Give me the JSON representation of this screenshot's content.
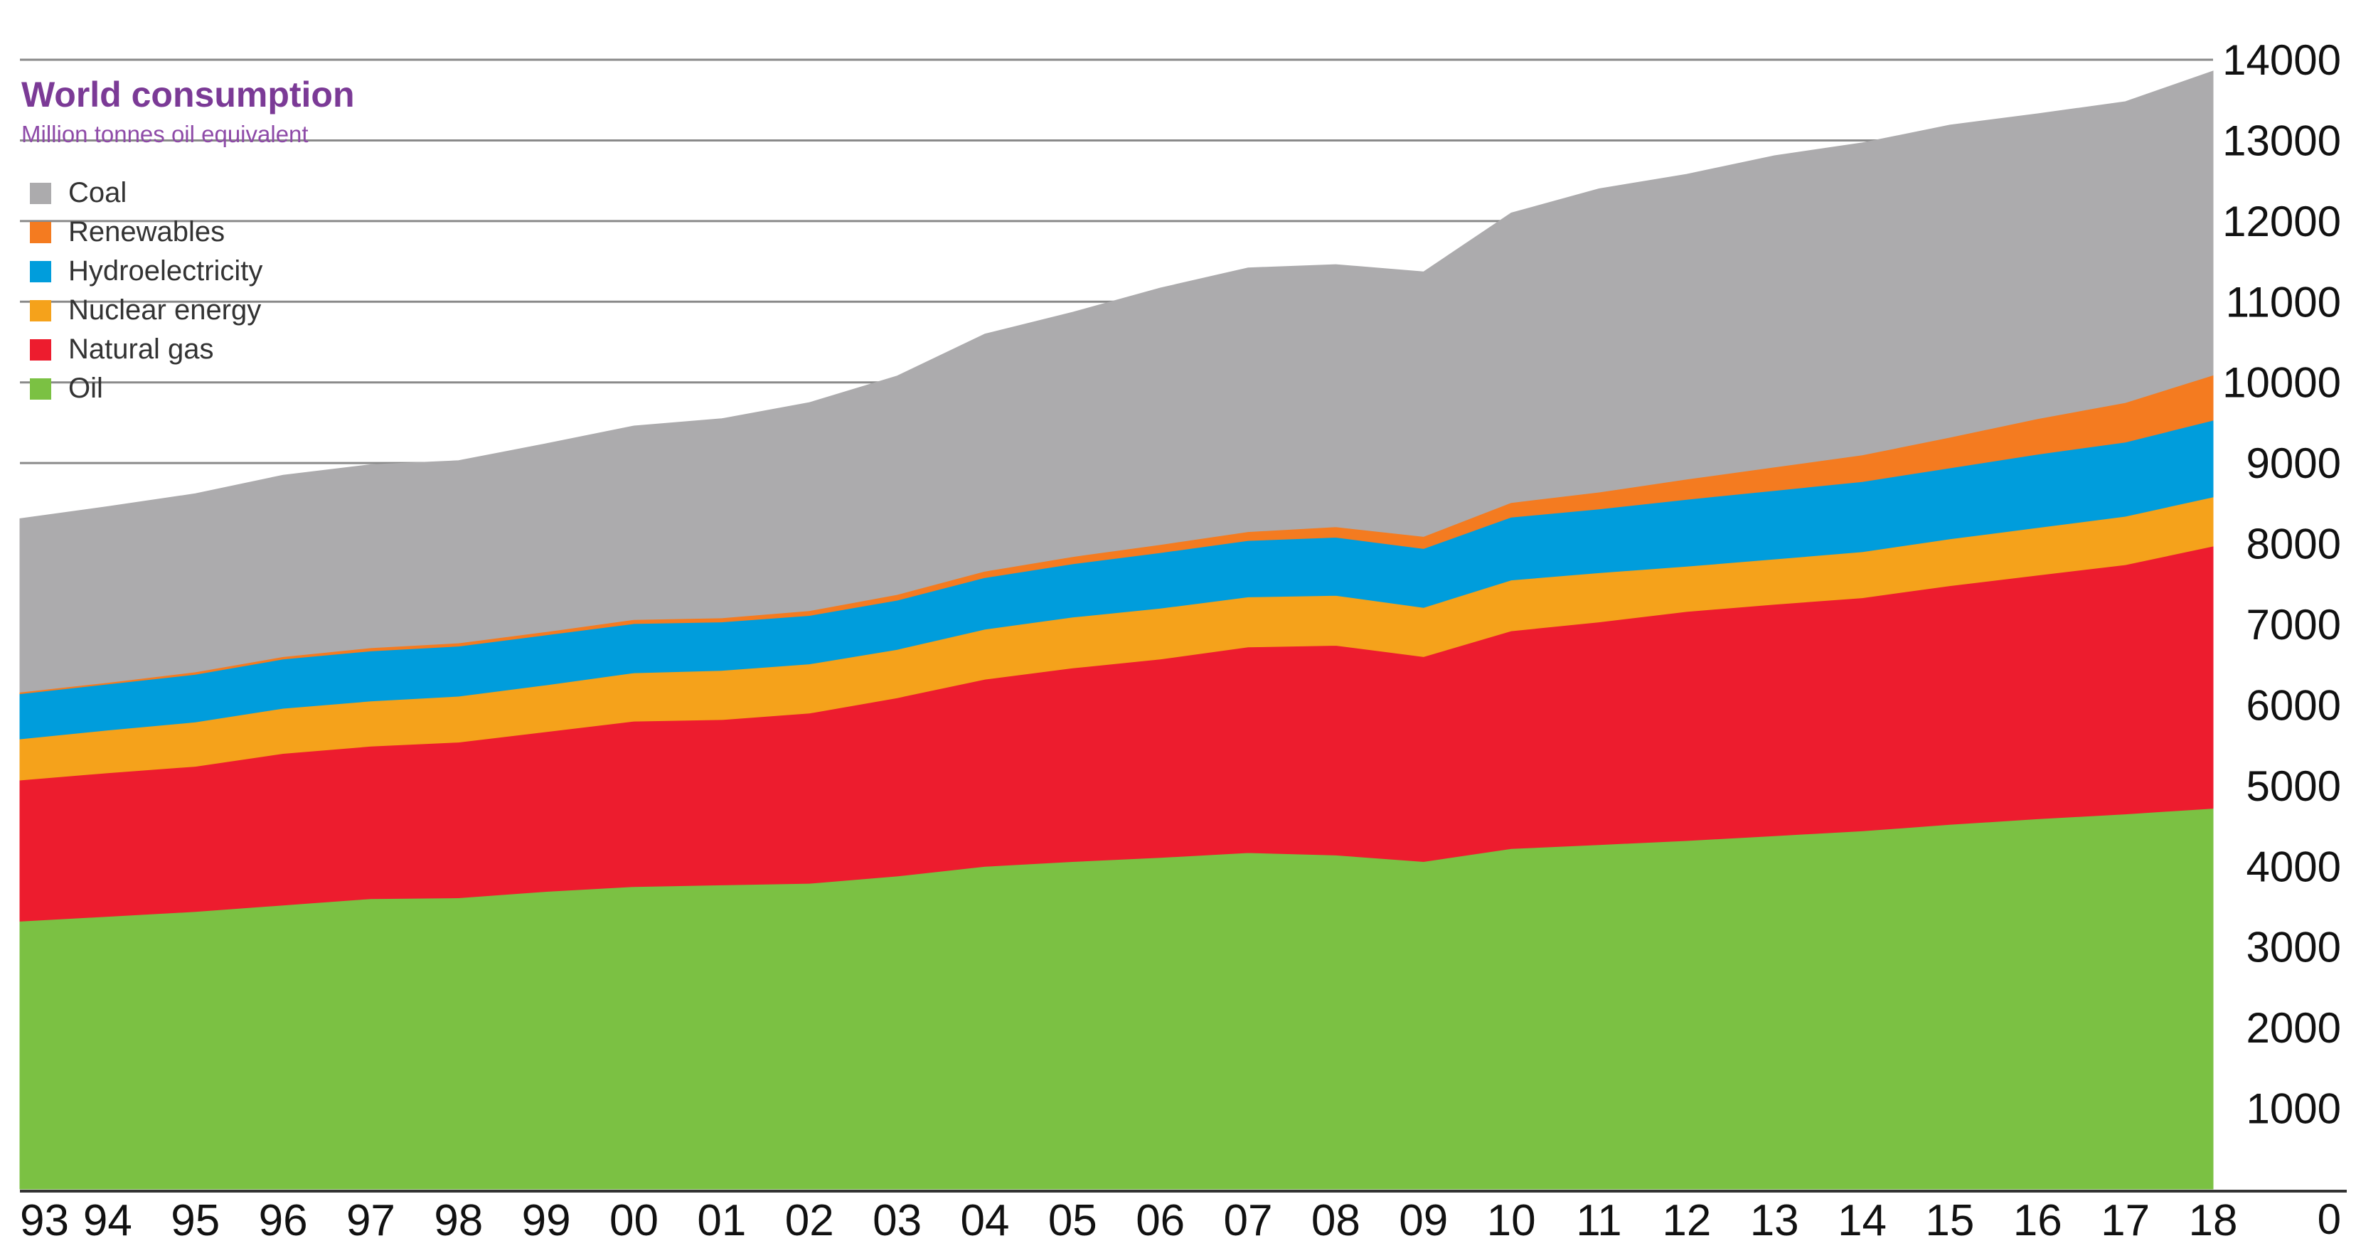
{
  "chart_data": {
    "type": "area",
    "stacked": true,
    "title": "World consumption",
    "subtitle": "Million tonnes oil equivalent",
    "xlabel": "",
    "ylabel": "",
    "x": [
      "93",
      "94",
      "95",
      "96",
      "97",
      "98",
      "99",
      "00",
      "01",
      "02",
      "03",
      "04",
      "05",
      "06",
      "07",
      "08",
      "09",
      "10",
      "11",
      "12",
      "13",
      "14",
      "15",
      "16",
      "17",
      "18"
    ],
    "yticks": [
      "1000",
      "2000",
      "3000",
      "4000",
      "5000",
      "6000",
      "7000",
      "8000",
      "9000",
      "10000",
      "11000",
      "12000",
      "13000",
      "14000"
    ],
    "y_zero_label": "0",
    "ylim": [
      0,
      14300
    ],
    "legend_position": "top-left",
    "series": [
      {
        "name": "Oil",
        "color": "#7bc143",
        "values": [
          3320,
          3380,
          3440,
          3520,
          3600,
          3610,
          3690,
          3750,
          3770,
          3790,
          3880,
          4000,
          4060,
          4110,
          4170,
          4140,
          4060,
          4220,
          4270,
          4320,
          4380,
          4440,
          4520,
          4590,
          4650,
          4720
        ]
      },
      {
        "name": "Natural gas",
        "color": "#ed1c2e",
        "values": [
          1750,
          1780,
          1800,
          1880,
          1890,
          1930,
          1980,
          2050,
          2050,
          2110,
          2210,
          2320,
          2400,
          2460,
          2550,
          2600,
          2540,
          2700,
          2760,
          2840,
          2870,
          2890,
          2960,
          3020,
          3090,
          3250
        ]
      },
      {
        "name": "Nuclear energy",
        "color": "#f5a21b",
        "values": [
          510,
          530,
          550,
          560,
          560,
          570,
          580,
          600,
          610,
          610,
          600,
          620,
          630,
          630,
          620,
          620,
          610,
          630,
          610,
          560,
          560,
          570,
          580,
          590,
          600,
          610
        ]
      },
      {
        "name": "Hydroelectricity",
        "color": "#009ddc",
        "values": [
          560,
          570,
          590,
          610,
          620,
          620,
          620,
          610,
          600,
          600,
          610,
          640,
          660,
          690,
          700,
          720,
          730,
          780,
          790,
          830,
          850,
          870,
          880,
          910,
          920,
          950
        ]
      },
      {
        "name": "Renewables",
        "color": "#f47b20",
        "values": [
          20,
          20,
          30,
          30,
          40,
          40,
          40,
          50,
          50,
          60,
          70,
          80,
          90,
          100,
          110,
          130,
          150,
          180,
          210,
          250,
          290,
          330,
          380,
          440,
          490,
          560
        ]
      },
      {
        "name": "Coal",
        "color": "#acabad",
        "values": [
          2150,
          2180,
          2210,
          2250,
          2270,
          2260,
          2330,
          2400,
          2470,
          2580,
          2710,
          2940,
          3030,
          3180,
          3270,
          3250,
          3280,
          3590,
          3760,
          3780,
          3860,
          3870,
          3870,
          3780,
          3730,
          3770
        ]
      }
    ]
  }
}
